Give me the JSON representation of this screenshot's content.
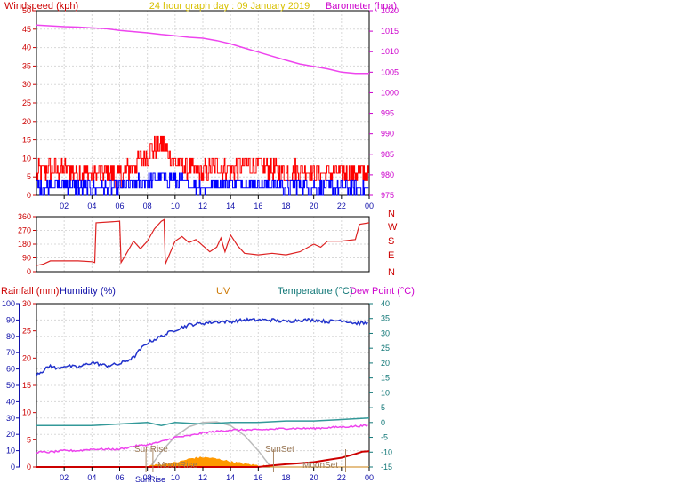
{
  "header": {
    "left_label": "Windspeed (kph)",
    "title": "24 hour graph day : 09 January 2019",
    "right_label": "Barometer (hpa)"
  },
  "labels": {
    "rainfall": "Rainfall (mm)",
    "humidity": "Humidity (%)",
    "uv": "UV",
    "temperature": "Temperature (°C)",
    "dewpoint": "Dew Point (°C)",
    "sunrise": "SunRise",
    "sunset": "SunSet",
    "moonrise": "MoonRise",
    "moonset": "MoonSet"
  },
  "colors": {
    "windspeed": "#ff0000",
    "gust": "#ff0000",
    "avg_wind": "#0000ff",
    "barometer": "#ee44ee",
    "direction": "#dd2222",
    "humidity": "#2233cc",
    "temperature": "#339999",
    "dewpoint": "#ee44ee",
    "rainfall": "#cc0000",
    "uv": "#ff9900",
    "solar": "#bbbbbb",
    "title": "#d8c000",
    "grid": "#d8d8d8"
  },
  "chart_data": [
    {
      "type": "line",
      "title": "24 hour graph day : 09 January 2019",
      "x_ticks": [
        "02",
        "04",
        "06",
        "08",
        "10",
        "12",
        "14",
        "16",
        "18",
        "20",
        "22",
        "00"
      ],
      "y_left": {
        "label": "Windspeed (kph)",
        "ylim": [
          0,
          50
        ],
        "ticks": [
          "0",
          "5",
          "10",
          "15",
          "20",
          "25",
          "30",
          "35",
          "40",
          "45",
          "50"
        ]
      },
      "y_right": {
        "label": "Barometer (hpa)",
        "ylim": [
          975,
          1020
        ],
        "ticks": [
          "975",
          "980",
          "985",
          "990",
          "995",
          "1000",
          "1005",
          "1010",
          "1015",
          "1020"
        ]
      },
      "series": [
        {
          "name": "Barometer (hpa)",
          "axis": "right",
          "x": [
            0,
            1,
            2,
            3,
            4,
            5,
            6,
            7,
            8,
            9,
            10,
            11,
            12,
            13,
            14,
            15,
            16,
            17,
            18,
            19,
            20,
            21,
            22,
            23,
            24
          ],
          "values": [
            1016.5,
            1016.3,
            1016.1,
            1016.0,
            1015.8,
            1015.6,
            1015.2,
            1014.9,
            1014.6,
            1014.2,
            1013.9,
            1013.5,
            1013.3,
            1012.7,
            1011.9,
            1010.9,
            1009.9,
            1008.9,
            1007.9,
            1007.0,
            1006.4,
            1005.8,
            1005.0,
            1004.7,
            1004.7
          ]
        },
        {
          "axis": "left",
          "x": [
            0,
            1,
            2,
            3,
            4,
            5,
            6,
            7,
            8,
            9,
            10,
            11,
            12,
            13,
            14,
            15,
            16,
            17,
            18,
            19,
            20,
            21,
            22,
            23,
            24
          ],
          "values": [
            6,
            7,
            7,
            6,
            6,
            6,
            5,
            8,
            11,
            14,
            9,
            7,
            6,
            8,
            7,
            8,
            8,
            7,
            6,
            7,
            6,
            6,
            6,
            6,
            6
          ]
        },
        {
          "axis": "left",
          "x": [
            0,
            1,
            2,
            3,
            4,
            5,
            6,
            7,
            8,
            9,
            10,
            11,
            12,
            13,
            14,
            15,
            16,
            17,
            18,
            19,
            20,
            21,
            22,
            23,
            24
          ],
          "values": [
            2,
            3,
            3,
            2,
            2,
            2,
            2,
            3,
            4,
            5,
            4,
            3,
            2,
            3,
            3,
            3,
            3,
            3,
            2,
            3,
            2,
            2,
            2,
            2,
            2
          ]
        }
      ]
    },
    {
      "type": "line",
      "y_left": {
        "ylim": [
          0,
          360
        ],
        "ticks": [
          "0",
          "90",
          "180",
          "270",
          "360"
        ]
      },
      "y_right_ticks": [
        "N",
        "W",
        "S",
        "E",
        "N"
      ],
      "series": [
        {
          "axis": "left",
          "x": [
            0,
            0.5,
            1,
            3,
            4,
            4.2,
            4.3,
            6,
            6.1,
            6.5,
            7,
            7.5,
            8,
            8.5,
            9,
            9.2,
            9.3,
            10,
            10.5,
            11,
            11.5,
            12,
            12.5,
            13,
            13.3,
            13.6,
            14,
            14.5,
            15,
            16,
            17,
            18,
            19,
            20,
            20.5,
            21,
            22,
            23,
            23.3,
            24
          ],
          "values": [
            40,
            50,
            70,
            70,
            65,
            60,
            320,
            330,
            60,
            120,
            200,
            150,
            200,
            280,
            330,
            340,
            50,
            200,
            230,
            190,
            210,
            170,
            130,
            160,
            220,
            130,
            240,
            170,
            120,
            110,
            120,
            110,
            130,
            180,
            160,
            200,
            200,
            210,
            310,
            320
          ]
        }
      ]
    },
    {
      "type": "line",
      "labels": [
        "Rainfall (mm)",
        "Humidity (%)",
        "UV",
        "Temperature (°C)",
        "Dew Point (°C)"
      ],
      "y_humidity": {
        "ylim": [
          0,
          100
        ],
        "ticks": [
          "0",
          "10",
          "20",
          "30",
          "40",
          "50",
          "60",
          "70",
          "80",
          "90",
          "100"
        ]
      },
      "y_rain_uv": {
        "ylim": [
          0,
          30
        ],
        "ticks": [
          "0",
          "5",
          "10",
          "15",
          "20",
          "25",
          "30"
        ]
      },
      "y_temperature": {
        "ylim": [
          -15,
          40
        ],
        "ticks": [
          "-15",
          "-10",
          "-5",
          "0",
          "5",
          "10",
          "15",
          "20",
          "25",
          "30",
          "35",
          "40"
        ]
      },
      "series": [
        {
          "name": "Humidity (%)",
          "axis": "humidity",
          "x": [
            0,
            0.5,
            1,
            1.5,
            2,
            3,
            4,
            5,
            6,
            7,
            7.5,
            8,
            9,
            10,
            11,
            12,
            13,
            14,
            15,
            16,
            17,
            18,
            19,
            20,
            21,
            22,
            23,
            24
          ],
          "values": [
            57,
            59,
            62,
            60,
            62,
            61,
            64,
            62,
            63,
            67,
            72,
            76,
            80,
            84,
            87,
            88,
            89,
            89,
            90,
            90,
            90,
            89,
            90,
            90,
            89,
            90,
            88,
            88
          ]
        },
        {
          "name": "Temperature (°C)",
          "axis": "temperature",
          "x": [
            0,
            2,
            4,
            6,
            8,
            9,
            10,
            12,
            14,
            16,
            18,
            20,
            22,
            24
          ],
          "values": [
            -1,
            -1,
            -1,
            -0.5,
            0,
            -1,
            0,
            -0.5,
            0,
            0,
            0.5,
            0.5,
            1,
            1.5
          ]
        },
        {
          "name": "Dew Point (°C)",
          "axis": "temperature",
          "x": [
            0,
            1,
            2,
            3,
            4,
            5,
            6,
            7,
            8,
            9,
            10,
            11,
            12,
            13,
            14,
            16,
            18,
            20,
            22,
            24
          ],
          "values": [
            -10,
            -10,
            -9.5,
            -9.5,
            -9,
            -9,
            -9,
            -8,
            -7.5,
            -6.5,
            -5,
            -4.5,
            -3.5,
            -3,
            -2.5,
            -2.5,
            -2,
            -2,
            -1.5,
            -1
          ]
        },
        {
          "name": "Rainfall (mm)",
          "axis": "rain_uv",
          "x": [
            0,
            16,
            17,
            18,
            19,
            20,
            21,
            22,
            23,
            23.5,
            24
          ],
          "values": [
            0,
            0,
            0.3,
            0.5,
            0.7,
            0.9,
            1.3,
            1.7,
            2.4,
            2.8,
            2.9
          ]
        },
        {
          "name": "UV",
          "axis": "rain_uv",
          "x": [
            0,
            8,
            9,
            10,
            10.5,
            11,
            11.5,
            12,
            12.5,
            13,
            13.5,
            14,
            15,
            16,
            17,
            24
          ],
          "values": [
            0,
            0,
            0.3,
            0.6,
            0.9,
            1.3,
            1.5,
            1.6,
            1.5,
            1.3,
            1.1,
            0.8,
            0.4,
            0.1,
            0,
            0
          ]
        },
        {
          "axis": "rain_uv",
          "x": [
            0,
            8.2,
            9,
            10,
            11,
            12,
            13,
            14,
            15,
            16,
            16.9,
            24
          ],
          "values": [
            0,
            0,
            2.8,
            5.6,
            7.4,
            8.2,
            8.3,
            7.6,
            5.8,
            3.0,
            0,
            0
          ]
        }
      ],
      "markers": [
        {
          "label": "SunRise",
          "x": 7.9
        },
        {
          "label": "SunSet",
          "x": 17.1
        },
        {
          "label": "MoonRise",
          "x": 8.4
        },
        {
          "label": "MoonSet",
          "x": 22.3
        }
      ]
    }
  ]
}
